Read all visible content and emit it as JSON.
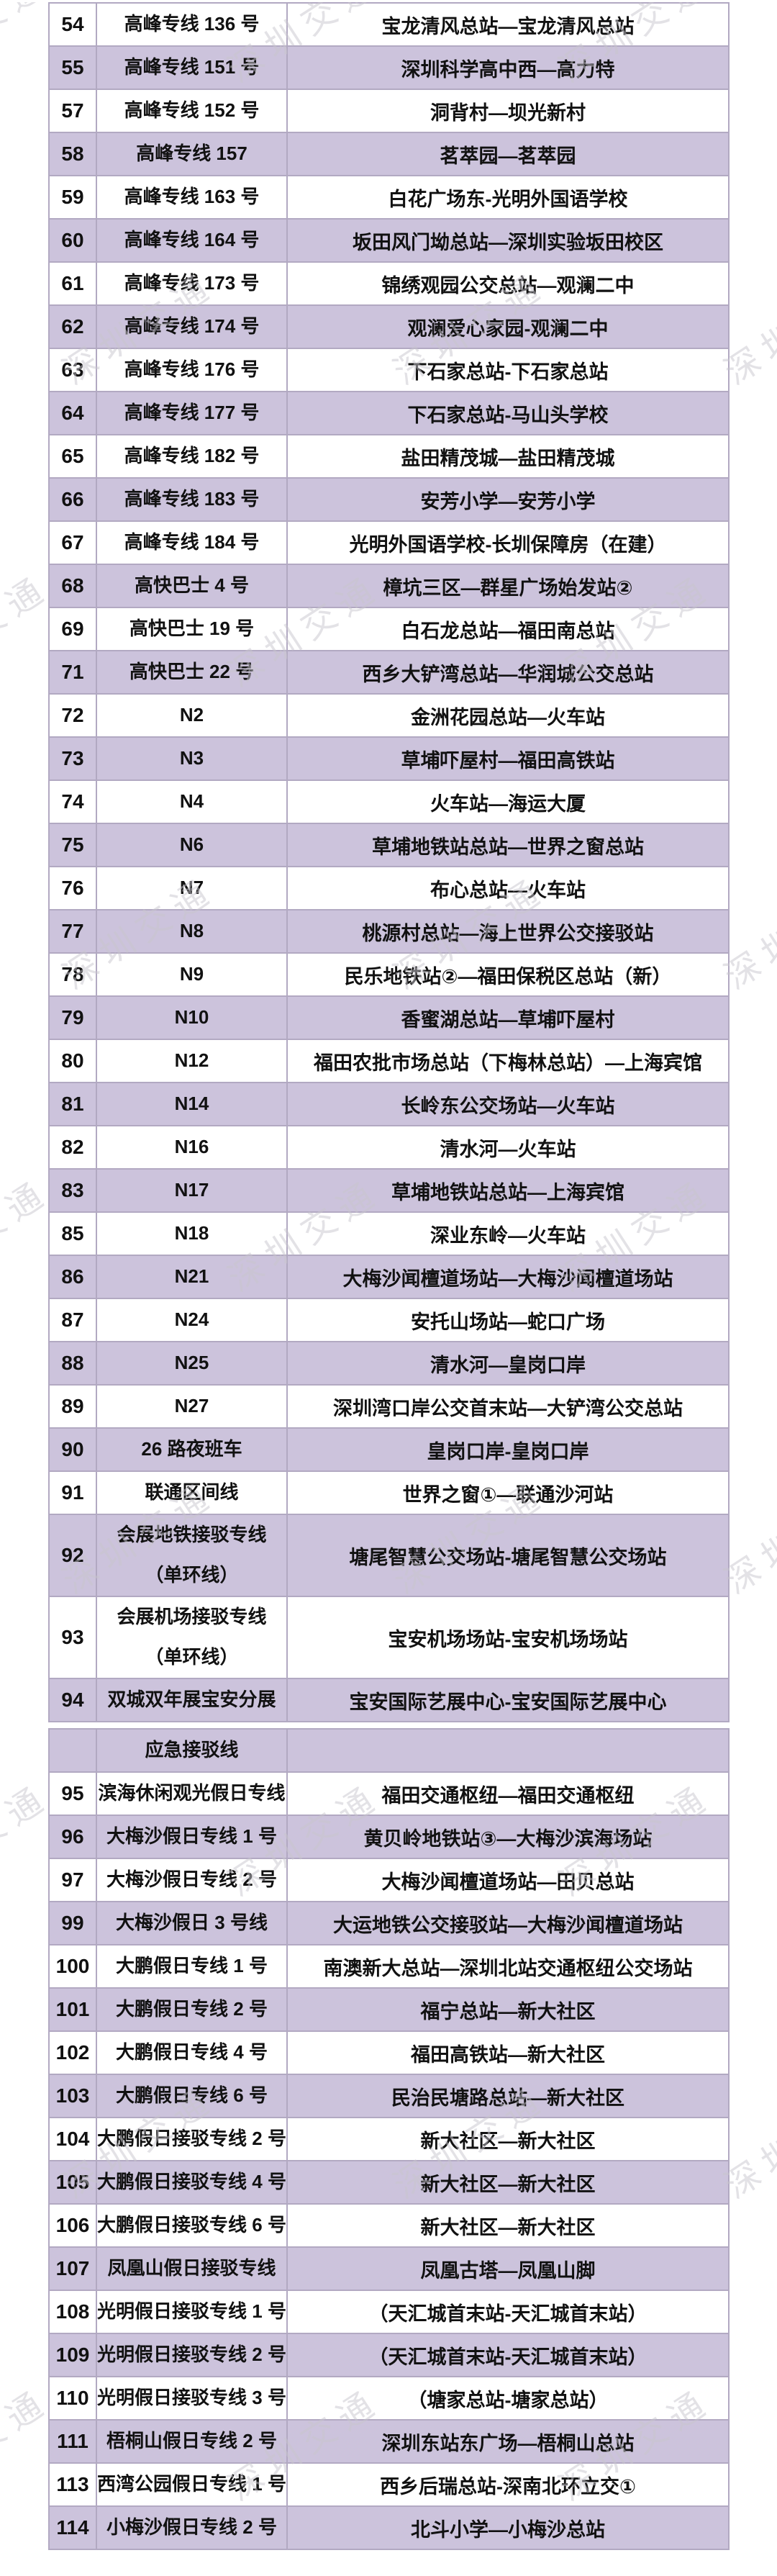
{
  "watermark": {
    "text": "深圳交通"
  },
  "colors": {
    "row_purple": "#ccc3dc",
    "row_white": "#ffffff",
    "border": "#b2a9c2",
    "text": "#111111",
    "watermark": "#c9c6ce"
  },
  "routes_table": {
    "sections": [
      {
        "id": "main",
        "rows": [
          {
            "no": "54",
            "name": "高峰专线 136 号",
            "endpoints": "宝龙清风总站—宝龙清风总站"
          },
          {
            "no": "55",
            "name": "高峰专线 151 号",
            "endpoints": "深圳科学高中西—高力特"
          },
          {
            "no": "57",
            "name": "高峰专线 152 号",
            "endpoints": "洞背村—坝光新村"
          },
          {
            "no": "58",
            "name": "高峰专线 157",
            "endpoints": "茗萃园—茗萃园"
          },
          {
            "no": "59",
            "name": "高峰专线 163 号",
            "endpoints": "白花广场东-光明外国语学校"
          },
          {
            "no": "60",
            "name": "高峰专线 164 号",
            "endpoints": "坂田风门坳总站—深圳实验坂田校区"
          },
          {
            "no": "61",
            "name": "高峰专线 173 号",
            "endpoints": "锦绣观园公交总站—观澜二中"
          },
          {
            "no": "62",
            "name": "高峰专线 174 号",
            "endpoints": "观澜爱心家园-观澜二中"
          },
          {
            "no": "63",
            "name": "高峰专线 176 号",
            "endpoints": "下石家总站-下石家总站"
          },
          {
            "no": "64",
            "name": "高峰专线 177 号",
            "endpoints": "下石家总站-马山头学校"
          },
          {
            "no": "65",
            "name": "高峰专线 182 号",
            "endpoints": "盐田精茂城—盐田精茂城"
          },
          {
            "no": "66",
            "name": "高峰专线 183 号",
            "endpoints": "安芳小学—安芳小学"
          },
          {
            "no": "67",
            "name": "高峰专线 184 号",
            "endpoints": "光明外国语学校-长圳保障房（在建）"
          },
          {
            "no": "68",
            "name": "高快巴士 4 号",
            "endpoints": "樟坑三区—群星广场始发站②"
          },
          {
            "no": "69",
            "name": "高快巴士 19 号",
            "endpoints": "白石龙总站—福田南总站"
          },
          {
            "no": "71",
            "name": "高快巴士 22 号",
            "endpoints": "西乡大铲湾总站—华润城公交总站"
          },
          {
            "no": "72",
            "name": "N2",
            "endpoints": "金洲花园总站—火车站"
          },
          {
            "no": "73",
            "name": "N3",
            "endpoints": "草埔吓屋村—福田高铁站"
          },
          {
            "no": "74",
            "name": "N4",
            "endpoints": "火车站—海运大厦"
          },
          {
            "no": "75",
            "name": "N6",
            "endpoints": "草埔地铁站总站—世界之窗总站"
          },
          {
            "no": "76",
            "name": "N7",
            "endpoints": "布心总站—火车站"
          },
          {
            "no": "77",
            "name": "N8",
            "endpoints": "桃源村总站—海上世界公交接驳站"
          },
          {
            "no": "78",
            "name": "N9",
            "endpoints": "民乐地铁站②—福田保税区总站（新）"
          },
          {
            "no": "79",
            "name": "N10",
            "endpoints": "香蜜湖总站—草埔吓屋村"
          },
          {
            "no": "80",
            "name": "N12",
            "endpoints": "福田农批市场总站（下梅林总站）—上海宾馆"
          },
          {
            "no": "81",
            "name": "N14",
            "endpoints": "长岭东公交场站—火车站"
          },
          {
            "no": "82",
            "name": "N16",
            "endpoints": "清水河—火车站"
          },
          {
            "no": "83",
            "name": "N17",
            "endpoints": "草埔地铁站总站—上海宾馆"
          },
          {
            "no": "85",
            "name": "N18",
            "endpoints": "深业东岭—火车站"
          },
          {
            "no": "86",
            "name": "N21",
            "endpoints": "大梅沙闻檀道场站—大梅沙闻檀道场站"
          },
          {
            "no": "87",
            "name": "N24",
            "endpoints": "安托山场站—蛇口广场"
          },
          {
            "no": "88",
            "name": "N25",
            "endpoints": "清水河—皇岗口岸"
          },
          {
            "no": "89",
            "name": "N27",
            "endpoints": "深圳湾口岸公交首末站—大铲湾公交总站"
          },
          {
            "no": "90",
            "name": "26 路夜班车",
            "endpoints": "皇岗口岸-皇岗口岸"
          },
          {
            "no": "91",
            "name": "联通区间线",
            "endpoints": "世界之窗①—联通沙河站"
          },
          {
            "no": "92",
            "name": "会展地铁接驳专线\n（单环线）",
            "endpoints": "塘尾智慧公交场站-塘尾智慧公交场站"
          },
          {
            "no": "93",
            "name": "会展机场接驳专线\n（单环线）",
            "endpoints": "宝安机场场站-宝安机场场站"
          },
          {
            "no": "94",
            "name": "双城双年展宝安分展",
            "endpoints": "宝安国际艺展中心-宝安国际艺展中心"
          }
        ]
      },
      {
        "id": "emergency",
        "header_label": "应急接驳线",
        "rows": [
          {
            "no": "95",
            "name": "滨海休闲观光假日专线",
            "endpoints": "福田交通枢纽—福田交通枢纽"
          },
          {
            "no": "96",
            "name": "大梅沙假日专线 1 号",
            "endpoints": "黄贝岭地铁站③—大梅沙滨海场站"
          },
          {
            "no": "97",
            "name": "大梅沙假日专线 2 号",
            "endpoints": "大梅沙闻檀道场站—田贝总站"
          },
          {
            "no": "99",
            "name": "大梅沙假日 3 号线",
            "endpoints": "大运地铁公交接驳站—大梅沙闻檀道场站"
          },
          {
            "no": "100",
            "name": "大鹏假日专线 1 号",
            "endpoints": "南澳新大总站—深圳北站交通枢纽公交场站"
          },
          {
            "no": "101",
            "name": "大鹏假日专线 2 号",
            "endpoints": "福宁总站—新大社区"
          },
          {
            "no": "102",
            "name": "大鹏假日专线 4 号",
            "endpoints": "福田高铁站—新大社区"
          },
          {
            "no": "103",
            "name": "大鹏假日专线 6 号",
            "endpoints": "民治民塘路总站—新大社区"
          },
          {
            "no": "104",
            "name": "大鹏假日接驳专线 2 号",
            "endpoints": "新大社区—新大社区"
          },
          {
            "no": "105",
            "name": "大鹏假日接驳专线 4 号",
            "endpoints": "新大社区—新大社区"
          },
          {
            "no": "106",
            "name": "大鹏假日接驳专线 6 号",
            "endpoints": "新大社区—新大社区"
          },
          {
            "no": "107",
            "name": "凤凰山假日接驳专线",
            "endpoints": "凤凰古塔—凤凰山脚"
          },
          {
            "no": "108",
            "name": "光明假日接驳专线 1 号",
            "endpoints": "（天汇城首末站-天汇城首末站）"
          },
          {
            "no": "109",
            "name": "光明假日接驳专线 2 号",
            "endpoints": "（天汇城首末站-天汇城首末站）"
          },
          {
            "no": "110",
            "name": "光明假日接驳专线 3 号",
            "endpoints": "（塘家总站-塘家总站）"
          },
          {
            "no": "111",
            "name": "梧桐山假日专线 2 号",
            "endpoints": "深圳东站东广场—梧桐山总站"
          },
          {
            "no": "113",
            "name": "西湾公园假日专线 1 号",
            "endpoints": "西乡后瑞总站-深南北环立交①"
          },
          {
            "no": "114",
            "name": "小梅沙假日专线 2 号",
            "endpoints": "北斗小学—小梅沙总站"
          }
        ]
      }
    ]
  }
}
